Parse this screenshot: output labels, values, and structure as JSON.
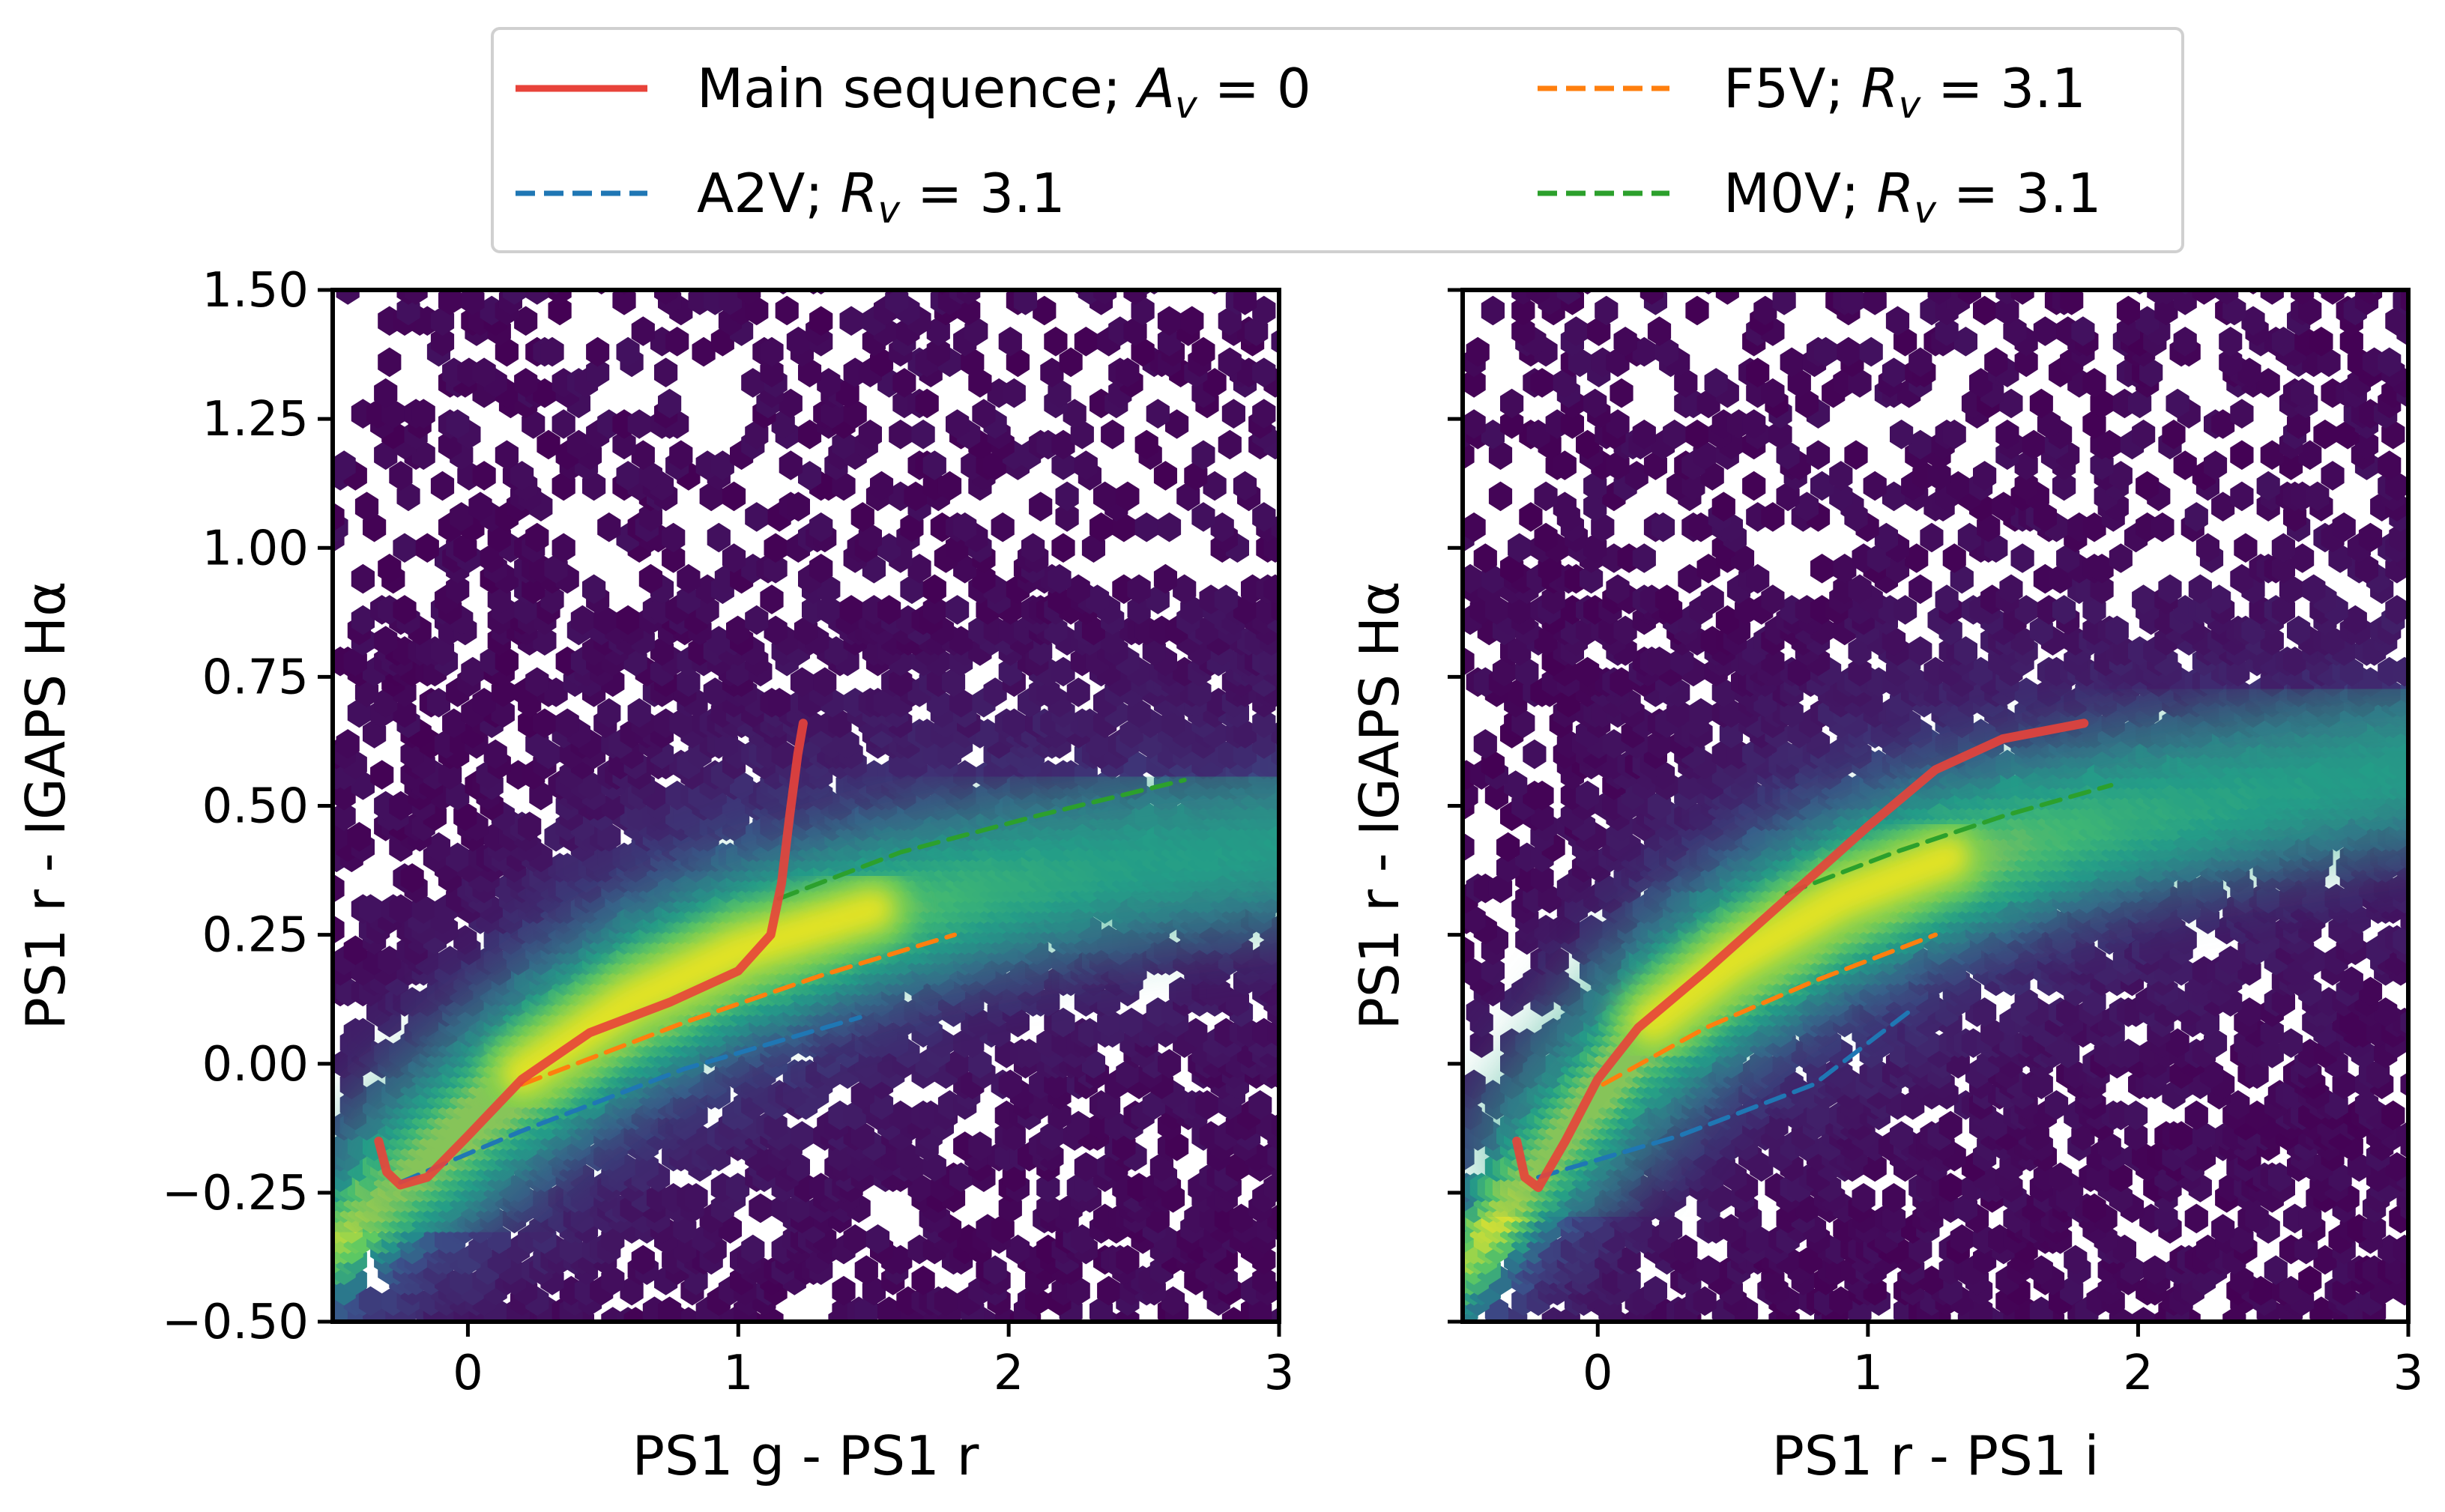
{
  "chart_data": [
    {
      "type": "scatter",
      "subtype": "hexbin-density",
      "xlabel": "PS1 g - PS1 r",
      "ylabel": "PS1 r - IGAPS Hα",
      "xlim": [
        -0.5,
        3.0
      ],
      "ylim": [
        -0.5,
        1.5
      ],
      "xticks": [
        0,
        1,
        2,
        3
      ],
      "yticks": [
        -0.5,
        -0.25,
        0.0,
        0.25,
        0.5,
        0.75,
        1.0,
        1.25,
        1.5
      ],
      "xtick_labels": [
        "0",
        "1",
        "2",
        "3"
      ],
      "ytick_labels": [
        "−0.50",
        "−0.25",
        "0.00",
        "0.25",
        "0.50",
        "0.75",
        "1.00",
        "1.25",
        "1.50"
      ],
      "grid": false,
      "density_ridge": {
        "x": [
          -0.2,
          0.2,
          0.6,
          1.0,
          1.5,
          2.0,
          2.5,
          3.0
        ],
        "y": [
          -0.2,
          -0.02,
          0.12,
          0.22,
          0.3,
          0.36,
          0.4,
          0.43
        ]
      },
      "series": [
        {
          "name": "Main sequence",
          "style": "solid",
          "color": "#e8433a",
          "x": [
            -0.33,
            -0.3,
            -0.25,
            -0.15,
            0.0,
            0.2,
            0.45,
            0.75,
            1.0,
            1.12,
            1.16,
            1.19,
            1.22,
            1.24
          ],
          "y": [
            -0.15,
            -0.21,
            -0.235,
            -0.22,
            -0.14,
            -0.03,
            0.06,
            0.12,
            0.18,
            0.25,
            0.35,
            0.48,
            0.6,
            0.66
          ]
        },
        {
          "name": "A2V",
          "style": "dashed",
          "color": "#1f77b4",
          "x": [
            -0.25,
            0.2,
            0.8,
            1.45
          ],
          "y": [
            -0.23,
            -0.13,
            -0.01,
            0.09
          ]
        },
        {
          "name": "F5V",
          "style": "dashed",
          "color": "#ff7f0e",
          "x": [
            0.2,
            0.8,
            1.3,
            1.8
          ],
          "y": [
            -0.04,
            0.08,
            0.17,
            0.25
          ]
        },
        {
          "name": "M0V",
          "style": "dashed",
          "color": "#2ca02c",
          "x": [
            1.15,
            1.6,
            2.1,
            2.65
          ],
          "y": [
            0.32,
            0.41,
            0.48,
            0.55
          ]
        }
      ]
    },
    {
      "type": "scatter",
      "subtype": "hexbin-density",
      "xlabel": "PS1 r - PS1 i",
      "ylabel": "PS1 r - IGAPS Hα",
      "xlim": [
        -0.5,
        3.0
      ],
      "ylim": [
        -0.5,
        1.5
      ],
      "xticks": [
        0,
        1,
        2,
        3
      ],
      "yticks": [
        -0.5,
        -0.25,
        0.0,
        0.25,
        0.5,
        0.75,
        1.0,
        1.25,
        1.5
      ],
      "xtick_labels": [
        "0",
        "1",
        "2",
        "3"
      ],
      "grid": false,
      "density_ridge": {
        "x": [
          -0.15,
          0.2,
          0.5,
          0.9,
          1.3,
          1.8,
          2.4,
          3.0
        ],
        "y": [
          -0.15,
          0.08,
          0.2,
          0.32,
          0.4,
          0.47,
          0.53,
          0.58
        ]
      },
      "series": [
        {
          "name": "Main sequence",
          "style": "solid",
          "color": "#e8433a",
          "x": [
            -0.3,
            -0.27,
            -0.22,
            -0.12,
            0.0,
            0.15,
            0.4,
            0.7,
            1.0,
            1.25,
            1.5,
            1.8
          ],
          "y": [
            -0.15,
            -0.22,
            -0.24,
            -0.15,
            -0.03,
            0.07,
            0.18,
            0.32,
            0.46,
            0.57,
            0.63,
            0.66
          ]
        },
        {
          "name": "A2V",
          "style": "dashed",
          "color": "#1f77b4",
          "x": [
            -0.22,
            0.3,
            0.8,
            1.15
          ],
          "y": [
            -0.22,
            -0.14,
            -0.04,
            0.1
          ]
        },
        {
          "name": "F5V",
          "style": "dashed",
          "color": "#ff7f0e",
          "x": [
            0.02,
            0.4,
            0.8,
            1.25
          ],
          "y": [
            -0.04,
            0.07,
            0.16,
            0.25
          ]
        },
        {
          "name": "M0V",
          "style": "dashed",
          "color": "#2ca02c",
          "x": [
            0.7,
            1.1,
            1.5,
            1.9
          ],
          "y": [
            0.33,
            0.41,
            0.48,
            0.54
          ]
        }
      ]
    }
  ],
  "legend": {
    "position": "top-center",
    "entries": [
      {
        "label": "Main sequence; ",
        "math_var": "A",
        "math_sub": "v",
        "math_rest": " = 0",
        "color": "#e8433a",
        "style": "solid"
      },
      {
        "label": "F5V; ",
        "math_var": "R",
        "math_sub": "v",
        "math_rest": " = 3.1",
        "color": "#ff7f0e",
        "style": "dashed"
      },
      {
        "label": "A2V; ",
        "math_var": "R",
        "math_sub": "v",
        "math_rest": " = 3.1",
        "color": "#1f77b4",
        "style": "dashed"
      },
      {
        "label": "M0V; ",
        "math_var": "R",
        "math_sub": "v",
        "math_rest": " = 3.1",
        "color": "#2ca02c",
        "style": "dashed"
      }
    ]
  }
}
